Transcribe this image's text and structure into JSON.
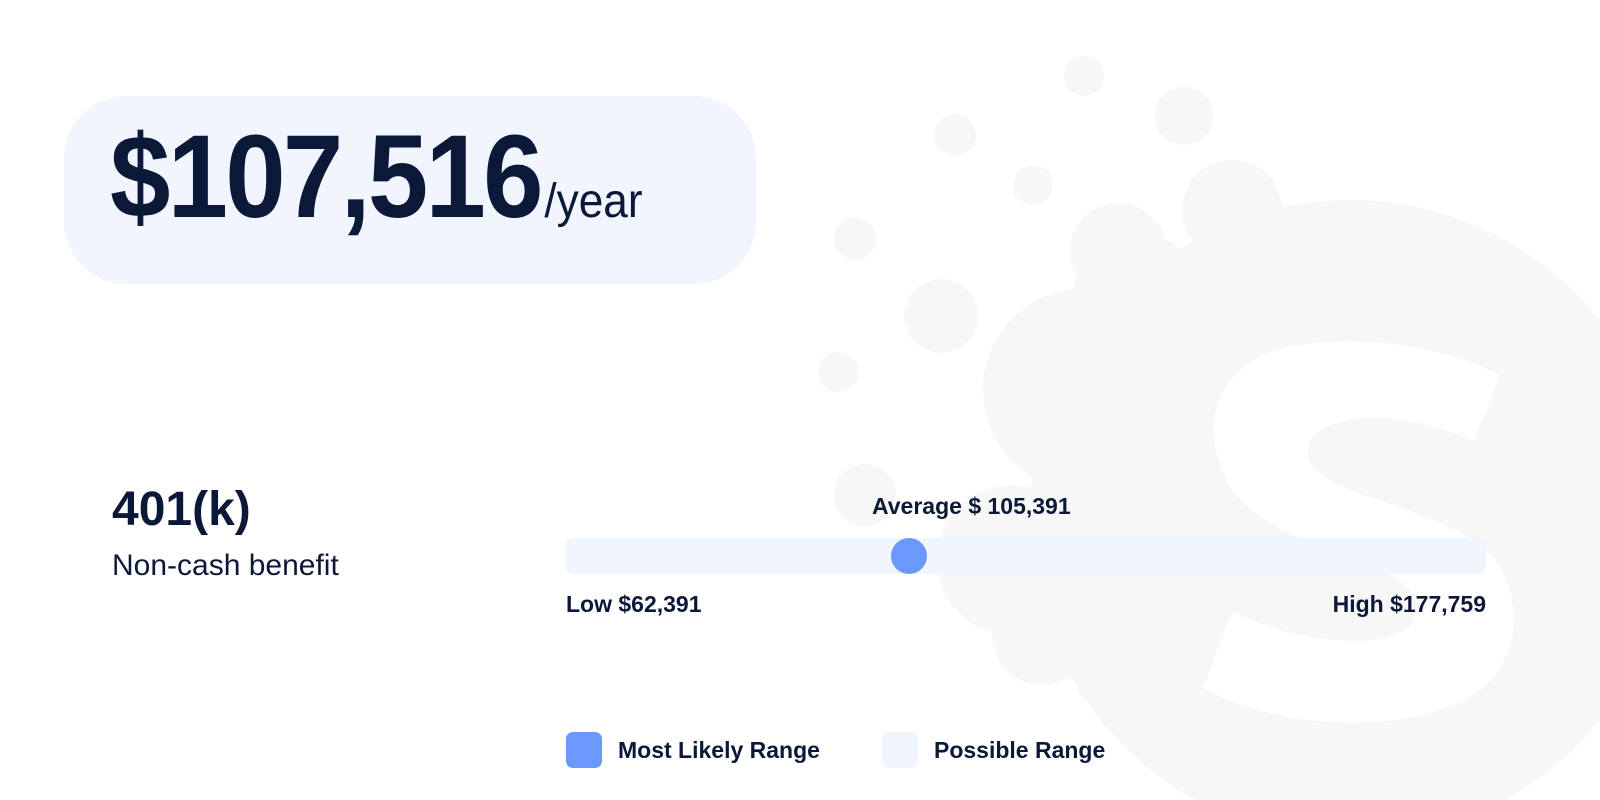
{
  "salary": {
    "amount": "$107,516",
    "period": "/year"
  },
  "benefit": {
    "title": "401(k)",
    "subtitle": "Non-cash benefit"
  },
  "range": {
    "average_label": "Average $ 105,391",
    "low_label": "Low $62,391",
    "high_label": "High $177,759",
    "low": 62391,
    "high": 177759,
    "marker_value": 105391
  },
  "legend": [
    {
      "label": "Most Likely Range",
      "color": "#6b98fb",
      "icon": "most-likely-swatch"
    },
    {
      "label": "Possible Range",
      "color": "#f0f5fe",
      "icon": "possible-swatch"
    }
  ],
  "colors": {
    "text": "#0c1838",
    "accent": "#6b98fb",
    "pill_background": "#f0f5fe",
    "watermark": "#f7f7f7"
  }
}
